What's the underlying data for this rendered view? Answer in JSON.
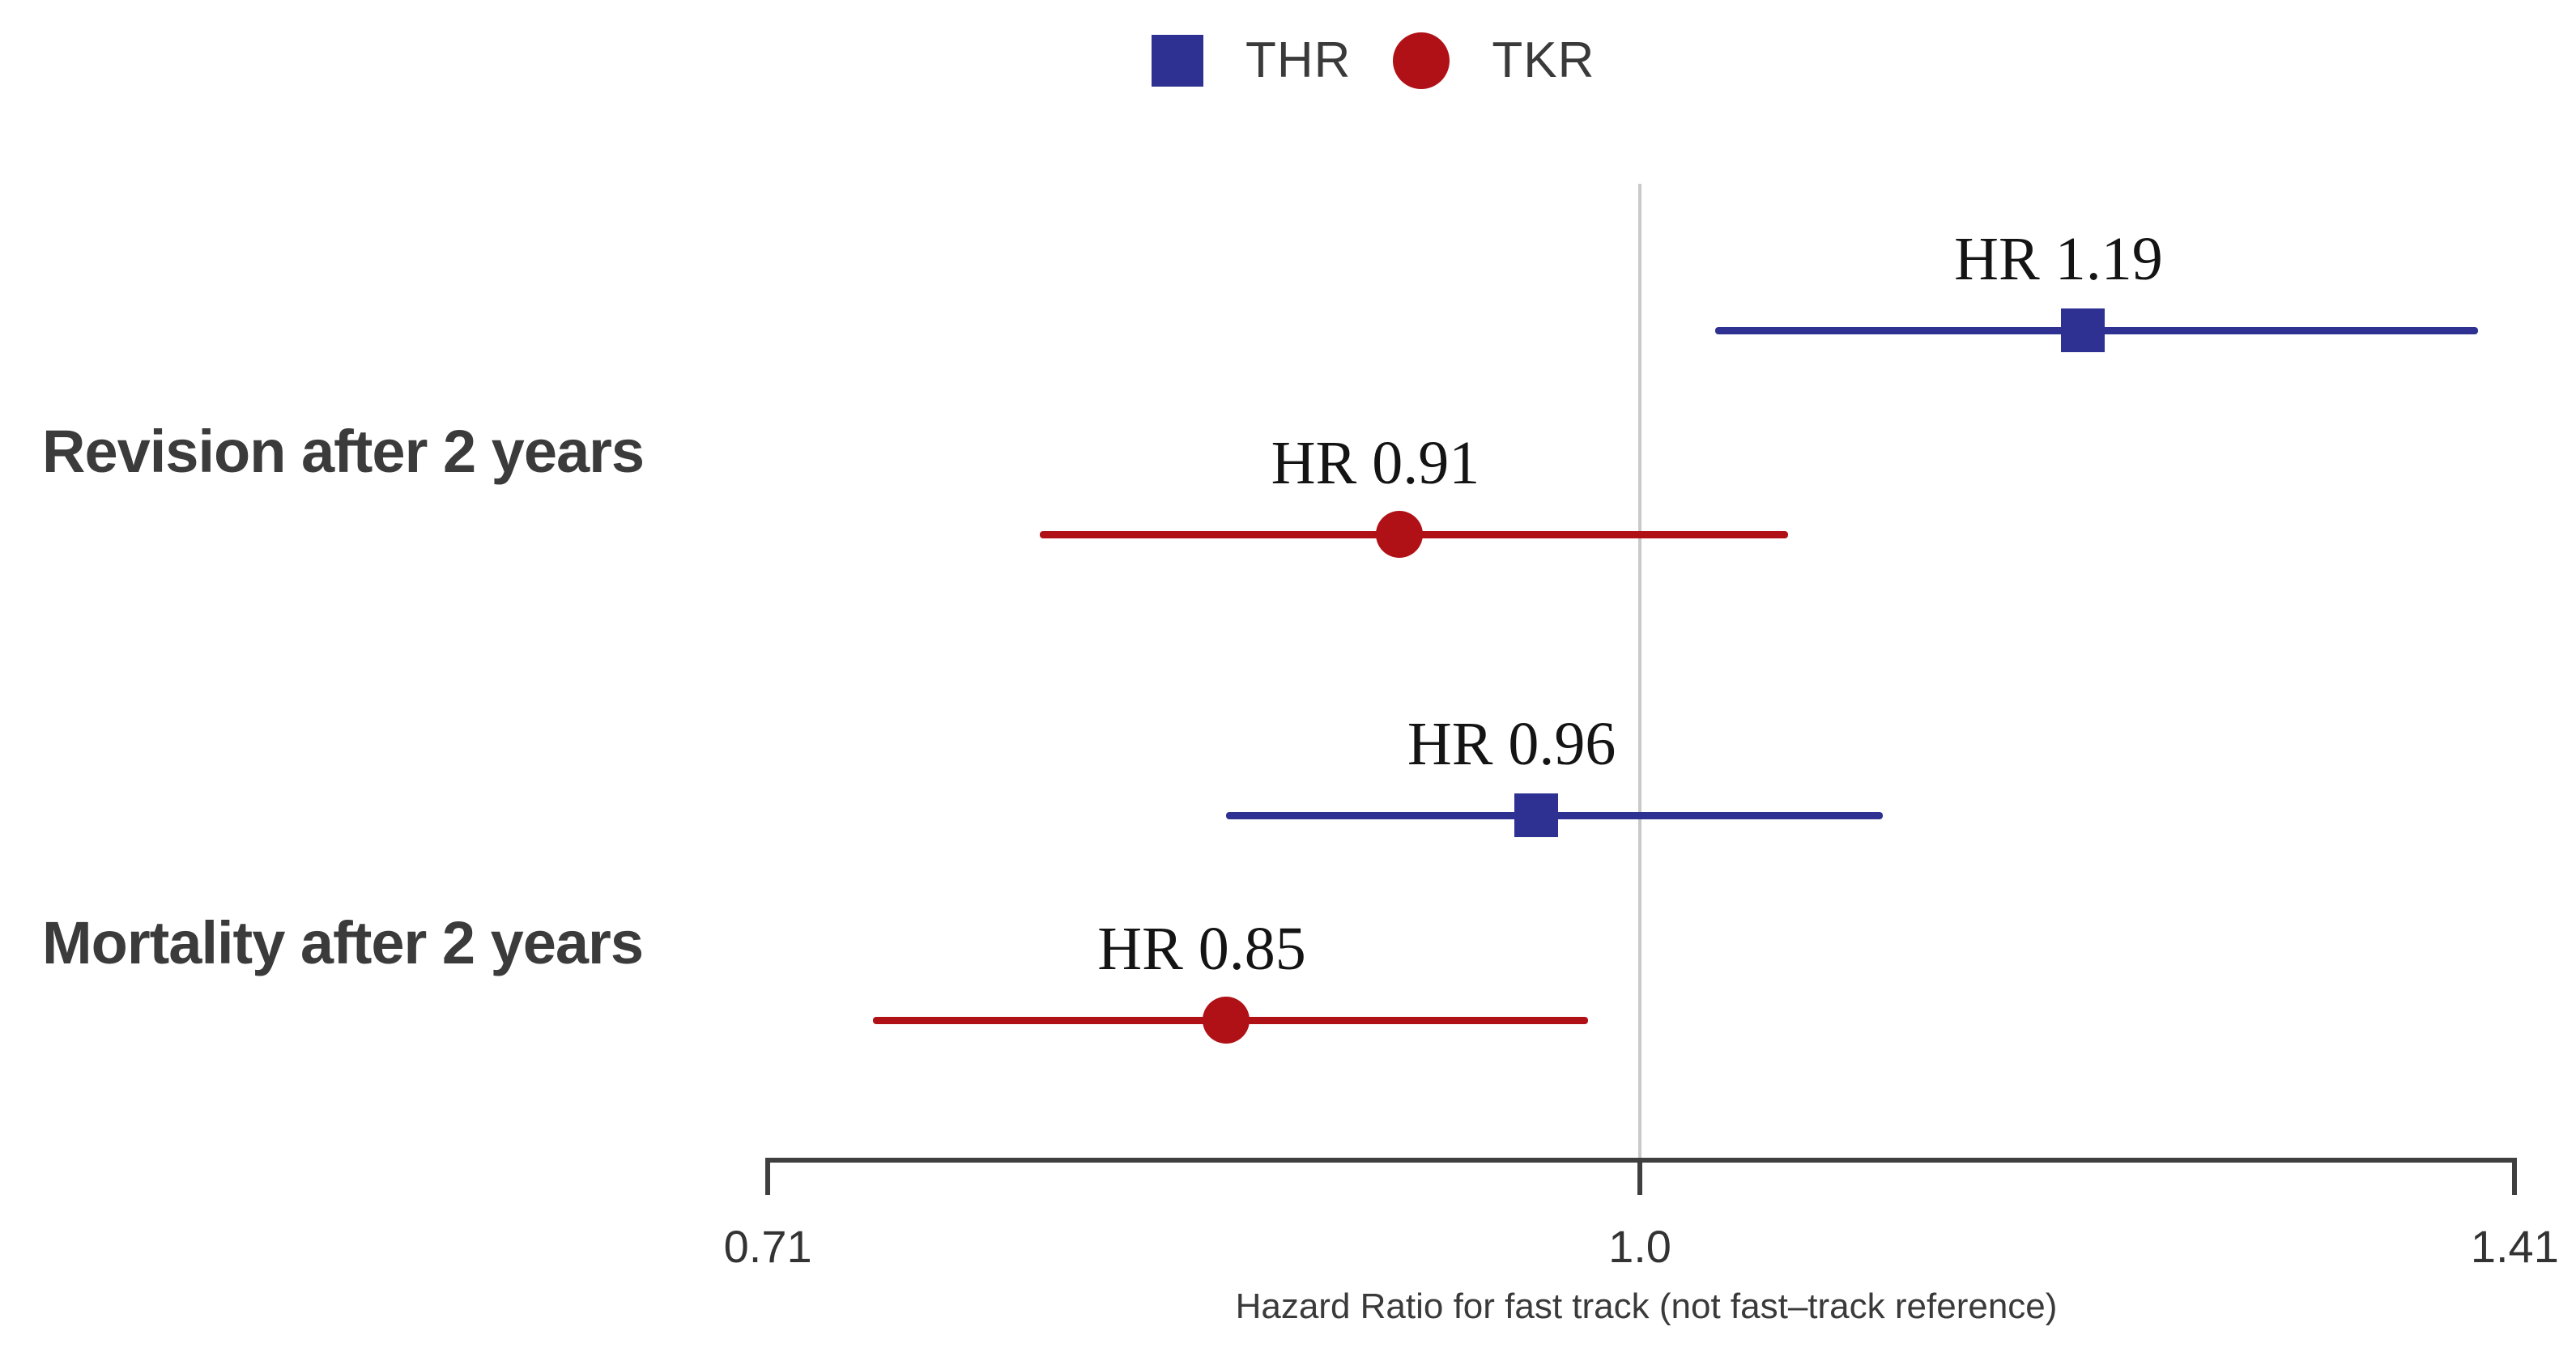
{
  "colors": {
    "THR": "#2e3192",
    "TKR": "#b01116",
    "reference_line": "#c9c9c9",
    "axis": "#3f3f3f",
    "text": "#3a3a3a"
  },
  "legend": {
    "items": [
      {
        "label": "THR",
        "marker": "square",
        "color": "#2e3192"
      },
      {
        "label": "TKR",
        "marker": "circle",
        "color": "#b01116"
      }
    ]
  },
  "chart_data": {
    "type": "forest",
    "x_axis": {
      "scale": "log",
      "range": [
        0.71,
        1.41
      ],
      "ticks": [
        0.71,
        1.0,
        1.41
      ],
      "tick_labels": [
        "0.71",
        "1.0",
        "1.41"
      ],
      "label": "Hazard Ratio for fast track (not fast–track reference)",
      "reference_line": 1.0
    },
    "groups": [
      {
        "label": "Revision after 2 years",
        "points": [
          {
            "series": "THR",
            "hr": 1.19,
            "ci_low": 1.03,
            "ci_high": 1.39,
            "label": "HR 1.19"
          },
          {
            "series": "TKR",
            "hr": 0.91,
            "ci_low": 0.79,
            "ci_high": 1.06,
            "label": "HR 0.91"
          }
        ]
      },
      {
        "label": "Mortality after 2 years",
        "points": [
          {
            "series": "THR",
            "hr": 0.96,
            "ci_low": 0.85,
            "ci_high": 1.1,
            "label": "HR 0.96"
          },
          {
            "series": "TKR",
            "hr": 0.85,
            "ci_low": 0.74,
            "ci_high": 0.98,
            "label": "HR 0.85"
          }
        ]
      }
    ]
  }
}
